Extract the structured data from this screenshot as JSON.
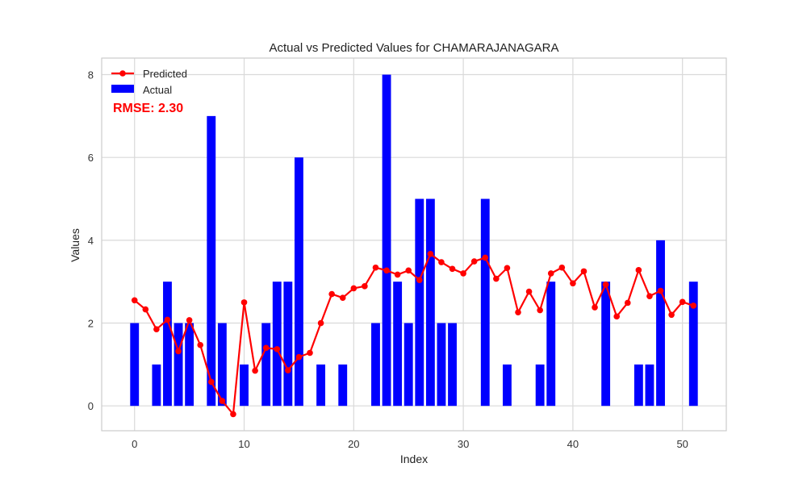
{
  "chart_data": {
    "type": "bar",
    "title": "Actual vs Predicted Values for CHAMARAJANAGARA",
    "xlabel": "Index",
    "ylabel": "Values",
    "xlim": [
      -3,
      54
    ],
    "ylim": [
      -0.6,
      8.4
    ],
    "xticks": [
      0,
      10,
      20,
      30,
      40,
      50
    ],
    "yticks": [
      0,
      2,
      4,
      6,
      8
    ],
    "grid": true,
    "legend_position": "top-left",
    "annotation": "RMSE: 2.30",
    "series": [
      {
        "name": "Actual",
        "type": "bar",
        "color": "#0000ff",
        "x": [
          0,
          1,
          2,
          3,
          4,
          5,
          6,
          7,
          8,
          9,
          10,
          11,
          12,
          13,
          14,
          15,
          16,
          17,
          18,
          19,
          20,
          21,
          22,
          23,
          24,
          25,
          26,
          27,
          28,
          29,
          30,
          31,
          32,
          33,
          34,
          35,
          36,
          37,
          38,
          39,
          40,
          41,
          42,
          43,
          44,
          45,
          46,
          47,
          48,
          49,
          50,
          51
        ],
        "values": [
          2,
          0,
          1,
          3,
          2,
          2,
          0,
          7,
          2,
          0,
          1,
          0,
          2,
          3,
          3,
          6,
          0,
          1,
          0,
          1,
          0,
          0,
          2,
          8,
          3,
          2,
          5,
          5,
          2,
          2,
          0,
          0,
          5,
          0,
          1,
          0,
          0,
          1,
          3,
          0,
          0,
          0,
          0,
          3,
          0,
          0,
          1,
          1,
          4,
          0,
          0,
          3
        ]
      },
      {
        "name": "Predicted",
        "type": "line",
        "color": "#ff0000",
        "x": [
          0,
          1,
          2,
          3,
          4,
          5,
          6,
          7,
          8,
          9,
          10,
          11,
          12,
          13,
          14,
          15,
          16,
          17,
          18,
          19,
          20,
          21,
          22,
          23,
          24,
          25,
          26,
          27,
          28,
          29,
          30,
          31,
          32,
          33,
          34,
          35,
          36,
          37,
          38,
          39,
          40,
          41,
          42,
          43,
          44,
          45,
          46,
          47,
          48,
          49,
          50,
          51
        ],
        "values": [
          2.55,
          2.33,
          1.85,
          2.08,
          1.32,
          2.07,
          1.47,
          0.58,
          0.12,
          -0.2,
          2.5,
          0.85,
          1.4,
          1.37,
          0.86,
          1.18,
          1.28,
          2.0,
          2.7,
          2.61,
          2.84,
          2.89,
          3.34,
          3.27,
          3.17,
          3.27,
          3.04,
          3.67,
          3.47,
          3.31,
          3.2,
          3.49,
          3.58,
          3.07,
          3.33,
          2.26,
          2.76,
          2.31,
          3.2,
          3.34,
          2.96,
          3.25,
          2.38,
          2.93,
          2.16,
          2.49,
          3.28,
          2.65,
          2.78,
          2.2,
          2.51,
          2.42
        ]
      }
    ]
  }
}
